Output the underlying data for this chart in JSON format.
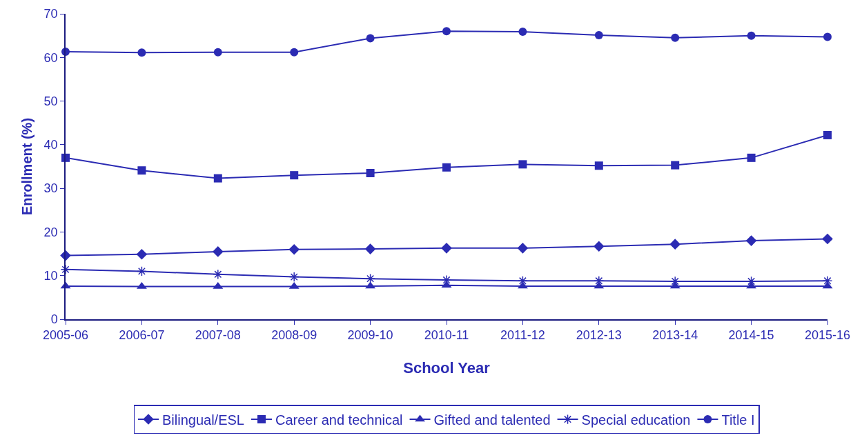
{
  "chart_data": {
    "type": "line",
    "xlabel": "School Year",
    "ylabel": "Enrollment (%)",
    "categories": [
      "2005-06",
      "2006-07",
      "2007-08",
      "2008-09",
      "2009-10",
      "2010-11",
      "2011-12",
      "2012-13",
      "2013-14",
      "2014-15",
      "2015-16"
    ],
    "series": [
      {
        "name": "Bilingual/ESL",
        "color": "#2b2bb3",
        "marker": "diamond",
        "values": [
          14.6,
          14.9,
          15.5,
          16.0,
          16.1,
          16.3,
          16.3,
          16.7,
          17.2,
          18.0,
          18.4
        ]
      },
      {
        "name": "Career and technical",
        "color": "#2b2bb3",
        "marker": "square",
        "values": [
          37.0,
          34.1,
          32.3,
          33.0,
          33.5,
          34.8,
          35.5,
          35.2,
          35.3,
          37.0,
          42.2
        ]
      },
      {
        "name": "Gifted and talented",
        "color": "#2b2bb3",
        "marker": "triangle",
        "values": [
          7.6,
          7.5,
          7.5,
          7.5,
          7.6,
          7.8,
          7.6,
          7.6,
          7.6,
          7.6,
          7.6
        ]
      },
      {
        "name": "Special education",
        "color": "#2b2bb3",
        "marker": "cross",
        "values": [
          11.4,
          11.0,
          10.3,
          9.7,
          9.3,
          9.0,
          8.8,
          8.8,
          8.7,
          8.7,
          8.8
        ]
      },
      {
        "name": "Title I",
        "color": "#2b2bb3",
        "marker": "circle",
        "values": [
          61.3,
          61.1,
          61.2,
          61.2,
          64.4,
          66.0,
          65.9,
          65.1,
          64.5,
          65.0,
          64.7
        ]
      }
    ],
    "ylim": [
      0,
      70
    ],
    "yticks": [
      0,
      10,
      20,
      30,
      40,
      50,
      60,
      70
    ],
    "grid": false,
    "legend": "bottom",
    "line_style": "solid"
  }
}
